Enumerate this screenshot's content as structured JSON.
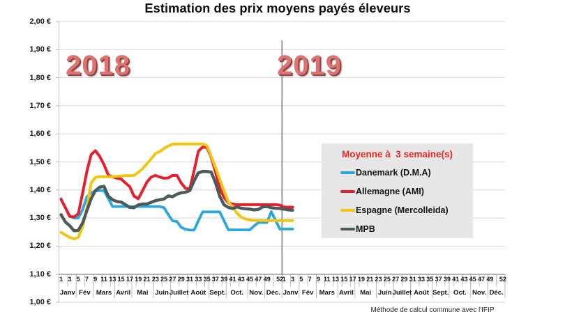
{
  "title": "Estimation des prix moyens payés éleveurs",
  "year_labels": [
    "2018",
    "2019"
  ],
  "footnote": "Méthode de calcul commune avec l'IFIP",
  "legend": {
    "title": "Moyenne à  3 semaine(s)"
  },
  "chart_data": {
    "type": "line",
    "title": "Estimation des prix moyens payés éleveurs",
    "xlabel": "",
    "ylabel": "",
    "ylim": [
      1.0,
      2.0
    ],
    "y_tick_step": 0.1,
    "y_tick_labels": [
      "2,00 €",
      "1,90 €",
      "1,80 €",
      "1,70 €",
      "1,60 €",
      "1,50 €",
      "1,40 €",
      "1,30 €",
      "1,20 €",
      "1,10 €",
      "1,00 €"
    ],
    "grid": "horizontal",
    "legend_position": "middle-right",
    "x_years": [
      "2018",
      "2019"
    ],
    "weeks_per_year": 52,
    "week_tick_labels": [
      "1",
      "3",
      "5",
      "7",
      "9",
      "11",
      "13",
      "15",
      "17",
      "19",
      "21",
      "23",
      "25",
      "27",
      "29",
      "31",
      "33",
      "35",
      "37",
      "39",
      "41",
      "43",
      "45",
      "47",
      "49",
      "52"
    ],
    "month_labels": [
      "Janv",
      "Fév",
      "Mars",
      "Avril",
      "Mai",
      "Juin",
      "Juillet",
      "Août",
      "Sept.",
      "Oct.",
      "Nov.",
      "Déc."
    ],
    "month_week_spans": [
      4,
      4,
      5,
      4,
      5,
      4,
      4,
      5,
      4,
      5,
      4,
      4
    ],
    "series": [
      {
        "name": "Danemark (D.M.A)",
        "color": "#2aa7dc",
        "width": 3.8,
        "values_2018": [
          1.369,
          1.336,
          1.308,
          1.3,
          1.3,
          1.33,
          1.375,
          1.39,
          1.396,
          1.398,
          1.398,
          1.37,
          1.341,
          1.341,
          1.341,
          1.341,
          1.341,
          1.341,
          1.341,
          1.341,
          1.341,
          1.341,
          1.341,
          1.341,
          1.337,
          1.312,
          1.29,
          1.288,
          1.267,
          1.26,
          1.257,
          1.257,
          1.29,
          1.322,
          1.322,
          1.322,
          1.322,
          1.322,
          1.29,
          1.258,
          1.258,
          1.258,
          1.258,
          1.258,
          1.258,
          1.272,
          1.284,
          1.284,
          1.284,
          1.323,
          1.292,
          1.261
        ],
        "values_2019": [
          1.261,
          1.261,
          1.261
        ]
      },
      {
        "name": "Allemagne (AMI)",
        "color": "#e4202c",
        "width": 4.0,
        "values_2018": [
          1.366,
          1.337,
          1.306,
          1.304,
          1.315,
          1.388,
          1.466,
          1.526,
          1.54,
          1.52,
          1.49,
          1.453,
          1.447,
          1.442,
          1.439,
          1.425,
          1.412,
          1.378,
          1.369,
          1.398,
          1.428,
          1.446,
          1.452,
          1.446,
          1.442,
          1.443,
          1.452,
          1.452,
          1.425,
          1.406,
          1.404,
          1.468,
          1.538,
          1.553,
          1.551,
          1.516,
          1.464,
          1.406,
          1.373,
          1.354,
          1.35,
          1.348,
          1.348,
          1.348,
          1.348,
          1.348,
          1.348,
          1.348,
          1.348,
          1.348,
          1.348,
          1.346
        ],
        "values_2019": [
          1.339,
          1.339,
          1.339
        ]
      },
      {
        "name": "Espagne (Mercolleida)",
        "color": "#f2c414",
        "width": 4.0,
        "values_2018": [
          1.249,
          1.24,
          1.231,
          1.226,
          1.231,
          1.268,
          1.334,
          1.425,
          1.445,
          1.447,
          1.447,
          1.447,
          1.447,
          1.449,
          1.45,
          1.451,
          1.451,
          1.452,
          1.463,
          1.476,
          1.493,
          1.511,
          1.53,
          1.537,
          1.548,
          1.557,
          1.563,
          1.564,
          1.564,
          1.564,
          1.564,
          1.564,
          1.564,
          1.564,
          1.558,
          1.519,
          1.48,
          1.438,
          1.396,
          1.357,
          1.34,
          1.318,
          1.303,
          1.297,
          1.293,
          1.292,
          1.291,
          1.291,
          1.291,
          1.291,
          1.291,
          1.291
        ],
        "values_2019": [
          1.291,
          1.291,
          1.291
        ]
      },
      {
        "name": "MPB",
        "color": "#4c5a5a",
        "width": 4.4,
        "values_2018": [
          1.312,
          1.286,
          1.273,
          1.255,
          1.256,
          1.282,
          1.326,
          1.369,
          1.398,
          1.41,
          1.413,
          1.378,
          1.365,
          1.359,
          1.357,
          1.348,
          1.338,
          1.337,
          1.347,
          1.35,
          1.35,
          1.356,
          1.362,
          1.365,
          1.368,
          1.379,
          1.376,
          1.385,
          1.39,
          1.392,
          1.398,
          1.432,
          1.461,
          1.466,
          1.466,
          1.464,
          1.426,
          1.377,
          1.347,
          1.338,
          1.334,
          1.34,
          1.335,
          1.333,
          1.332,
          1.329,
          1.331,
          1.34,
          1.341,
          1.337,
          1.335,
          1.334
        ],
        "values_2019": [
          1.332,
          1.329,
          1.328
        ]
      }
    ]
  }
}
